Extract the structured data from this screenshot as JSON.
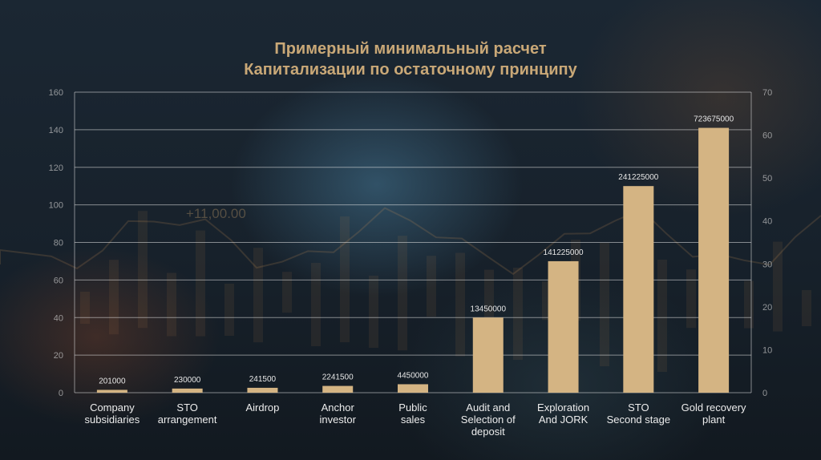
{
  "chart_data": {
    "type": "bar",
    "title_lines": [
      "Примерный минимальный расчет",
      "Капитализации по остаточному принципу"
    ],
    "categories": [
      [
        "Company",
        "subsidiaries"
      ],
      [
        "STO",
        "arrangement"
      ],
      [
        "Airdrop"
      ],
      [
        "Anchor",
        "investor"
      ],
      [
        "Public",
        "sales"
      ],
      [
        "Audit and",
        "Selection of",
        "deposit"
      ],
      [
        "Exploration",
        "And JORK"
      ],
      [
        "STO",
        "Second stage"
      ],
      [
        "Gold recovery",
        "plant"
      ]
    ],
    "values": [
      1.5,
      2.2,
      2.6,
      3.6,
      4.5,
      40,
      70,
      110,
      141
    ],
    "data_labels": [
      "201000",
      "230000",
      "241500",
      "2241500",
      "4450000",
      "13450000",
      "141225000",
      "241225000",
      "723675000"
    ],
    "ylim": [
      0,
      160
    ],
    "y_ticks": [
      "0",
      "20",
      "40",
      "60",
      "80",
      "100",
      "120",
      "140",
      "160"
    ],
    "y2lim": [
      0,
      70
    ],
    "y2_ticks": [
      "0",
      "10",
      "20",
      "30",
      "40",
      "50",
      "60",
      "70"
    ],
    "grid": true,
    "bar_color": "#d4b483",
    "title_color": "#c9a877"
  },
  "background": {
    "overlay_text": "+11,00.00"
  }
}
